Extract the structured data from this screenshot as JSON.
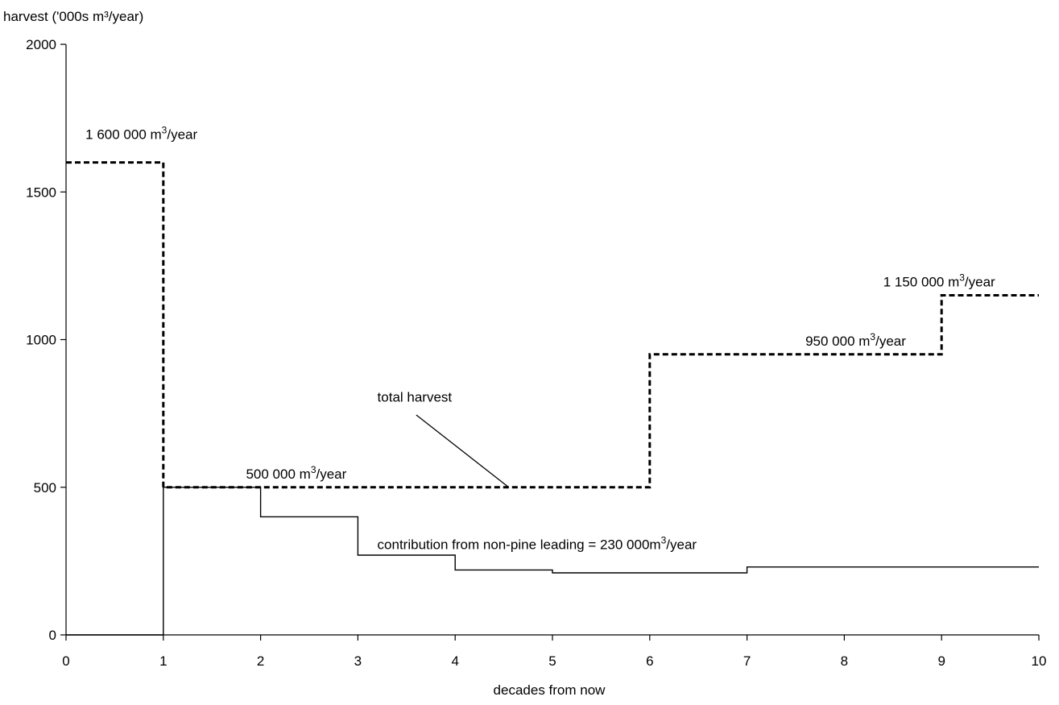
{
  "chart_data": {
    "type": "line",
    "ylabel": "harvest ('000s m³/year)",
    "xlabel": "decades from now",
    "xlim": [
      0,
      10
    ],
    "ylim": [
      0,
      2000
    ],
    "x_ticks": [
      "0",
      "1",
      "2",
      "3",
      "4",
      "5",
      "6",
      "7",
      "8",
      "9",
      "10"
    ],
    "y_ticks": [
      "0",
      "500",
      "1000",
      "1500",
      "2000"
    ],
    "grid": false,
    "series": [
      {
        "style": "dashed",
        "x": [
          0,
          1,
          1,
          6,
          6,
          9,
          9,
          10
        ],
        "y": [
          1600,
          1600,
          500,
          500,
          950,
          950,
          1150,
          1150
        ]
      },
      {
        "style": "solid",
        "x": [
          0,
          1,
          1,
          2,
          2,
          3,
          3,
          4,
          4,
          5,
          5,
          7,
          7,
          10
        ],
        "y": [
          0,
          0,
          500,
          500,
          400,
          400,
          270,
          270,
          220,
          220,
          210,
          210,
          230,
          230
        ]
      }
    ],
    "annotations": [
      {
        "id": "ann-1600",
        "text": "1 600 000 m",
        "sup": "3",
        "suffix": "/year",
        "x": 0.2,
        "y": 1680
      },
      {
        "id": "ann-500",
        "text": "500 000 m",
        "sup": "3",
        "suffix": "/year",
        "x": 1.85,
        "y": 530
      },
      {
        "id": "ann-950",
        "text": "950 000 m",
        "sup": "3",
        "suffix": "/year",
        "x": 7.6,
        "y": 980
      },
      {
        "id": "ann-1150",
        "text": "1 150 000 m",
        "sup": "3",
        "suffix": "/year",
        "x": 8.4,
        "y": 1180
      },
      {
        "id": "ann-total",
        "text": "total harvest",
        "x": 3.2,
        "y": 790
      },
      {
        "id": "ann-contrib",
        "text": "contribution from non-pine leading = 230 000m",
        "sup": "3",
        "suffix": "/year",
        "x": 3.2,
        "y": 290
      }
    ],
    "leader_line": {
      "from": [
        3.6,
        745
      ],
      "to": [
        4.55,
        500
      ]
    }
  }
}
